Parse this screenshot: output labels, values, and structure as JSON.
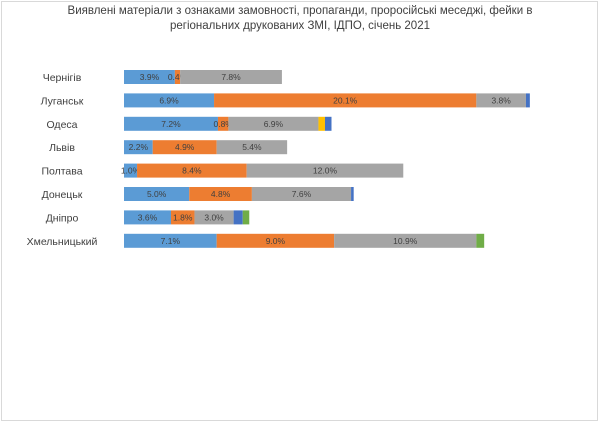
{
  "chart_data": {
    "type": "bar",
    "orientation": "horizontal",
    "stacked": true,
    "title_lines": [
      "Виявлені матеріали з ознаками замовності, пропаганди, проросійські меседжі, фейки в",
      "регіональних друкованих ЗМІ, ІДПО, січень 2021"
    ],
    "categories": [
      "Чернігів",
      "Луганськ",
      "Одеса",
      "Львів",
      "Полтава",
      "Донецьк",
      "Дніпро",
      "Хмельницький"
    ],
    "x_range": [
      0,
      31
    ],
    "grid": false,
    "legend": "none",
    "series": [
      {
        "color": "#5b9bd5",
        "values": [
          3.9,
          6.9,
          7.2,
          2.2,
          1.0,
          5.0,
          3.6,
          7.1
        ],
        "labels": [
          "3.9%",
          "6.9%",
          "7.2%",
          "2.2%",
          "1.0%",
          "5.0%",
          "3.6%",
          "7.1%"
        ]
      },
      {
        "color": "#ed7d31",
        "values": [
          0.4,
          20.1,
          0.8,
          4.9,
          8.4,
          4.8,
          1.8,
          9.0
        ],
        "labels": [
          "0.4%",
          "20.1%",
          "0.8%",
          "4.9%",
          "8.4%",
          "4.8%",
          "1.8%",
          "9.0%"
        ]
      },
      {
        "color": "#a5a5a5",
        "values": [
          7.8,
          3.8,
          6.9,
          5.4,
          12.0,
          7.6,
          3.0,
          10.9
        ],
        "labels": [
          "7.8%",
          "3.8%",
          "6.9%",
          "5.4%",
          "12.0%",
          "7.6%",
          "3.0%",
          "10.9%"
        ]
      },
      {
        "color": "#ffc000",
        "values": [
          0,
          0,
          0.5,
          0,
          0,
          0,
          0,
          0
        ],
        "labels": [
          "",
          "",
          "",
          "",
          "",
          "",
          "",
          ""
        ]
      },
      {
        "color": "#4472c4",
        "values": [
          0,
          0.3,
          0.5,
          0,
          0,
          0.2,
          0.7,
          0
        ],
        "labels": [
          "",
          "",
          "",
          "",
          "",
          "",
          "",
          ""
        ]
      },
      {
        "color": "#70ad47",
        "values": [
          0,
          0,
          0,
          0,
          0,
          0,
          0.5,
          0.6
        ],
        "labels": [
          "",
          "",
          "",
          "",
          "",
          "",
          "",
          ""
        ]
      }
    ]
  }
}
